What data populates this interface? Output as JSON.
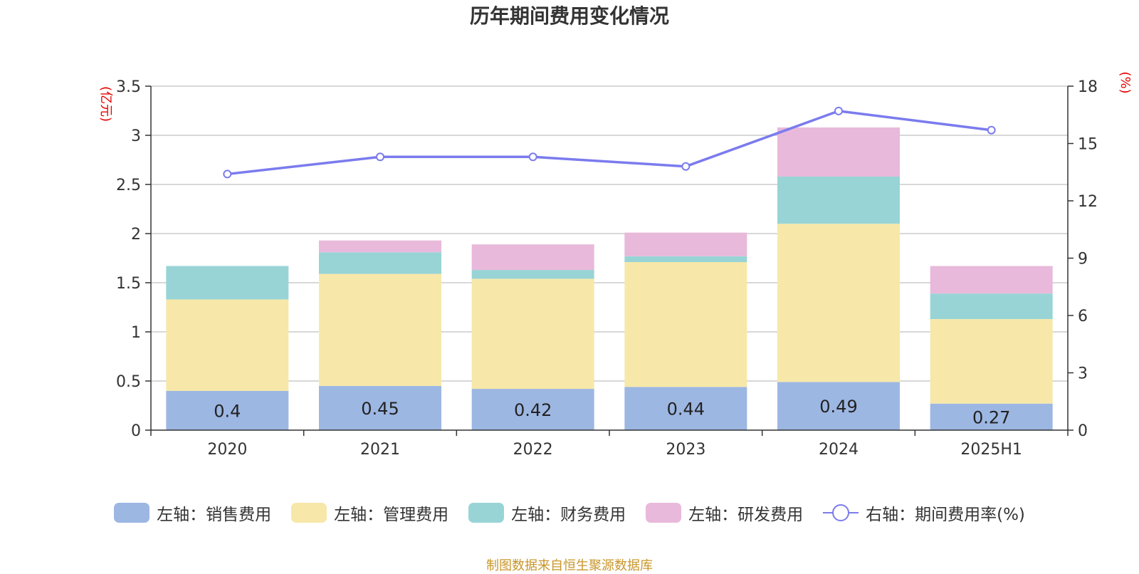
{
  "chart_data": {
    "type": "bar",
    "stacked": true,
    "title": "历年期间费用变化情况",
    "categories": [
      "2020",
      "2021",
      "2022",
      "2023",
      "2024",
      "2025H1"
    ],
    "left_axis": {
      "unit": "(亿元)",
      "ylim": [
        0,
        3.5
      ],
      "ticks": [
        "0",
        "0.5",
        "1",
        "1.5",
        "2",
        "2.5",
        "3",
        "3.5"
      ]
    },
    "right_axis": {
      "unit": "(%)",
      "ylim": [
        0,
        18
      ],
      "ticks": [
        "0",
        "3",
        "6",
        "9",
        "12",
        "15",
        "18"
      ]
    },
    "series": [
      {
        "name": "左轴：销售费用",
        "axis": "left",
        "color": "#9db7e3",
        "values": [
          0.4,
          0.45,
          0.42,
          0.44,
          0.49,
          0.27
        ],
        "labels": [
          "0.4",
          "0.45",
          "0.42",
          "0.44",
          "0.49",
          "0.27"
        ]
      },
      {
        "name": "左轴：管理费用",
        "axis": "left",
        "color": "#f7e8a9",
        "values": [
          0.93,
          1.14,
          1.12,
          1.27,
          1.61,
          0.86
        ]
      },
      {
        "name": "左轴：财务费用",
        "axis": "left",
        "color": "#98d4d6",
        "values": [
          0.34,
          0.22,
          0.09,
          0.06,
          0.48,
          0.26
        ]
      },
      {
        "name": "左轴：研发费用",
        "axis": "left",
        "color": "#e8b9da",
        "values": [
          0.0,
          0.12,
          0.26,
          0.24,
          0.5,
          0.28
        ]
      },
      {
        "name": "右轴：期间费用率(%)",
        "axis": "right",
        "type": "line",
        "color": "#7b7bee",
        "values": [
          13.4,
          14.3,
          14.3,
          13.8,
          16.7,
          15.7
        ]
      }
    ],
    "grid": true,
    "legend_position": "bottom"
  },
  "source_note": "制图数据来自恒生聚源数据库"
}
